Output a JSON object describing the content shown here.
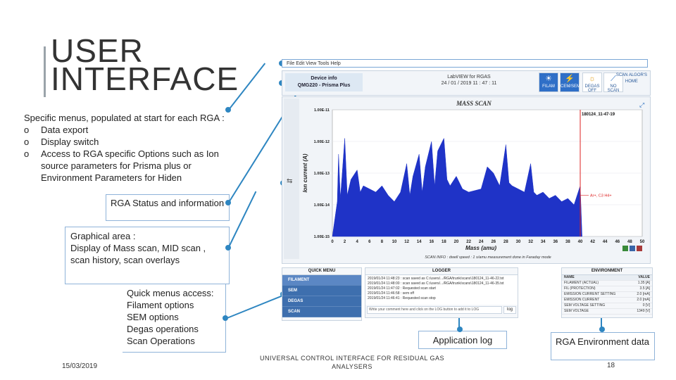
{
  "title": {
    "line1": "USER",
    "line2": "INTERFACE"
  },
  "callouts": {
    "menus": {
      "intro": "Specific menus, populated at start for each RGA :",
      "items": [
        {
          "bullet": "o",
          "text": "Data export"
        },
        {
          "bullet": "o",
          "text": "Display switch"
        },
        {
          "bullet": "o",
          "text": "Access to RGA specific Options such as Ion source parameters for Prisma plus or Environment Parameters for Hiden"
        }
      ]
    },
    "status": "RGA Status and information",
    "graphical": {
      "heading": "Graphical area :",
      "body": "Display of Mass scan, MID scan , scan history, scan overlays"
    },
    "quick": {
      "lines": [
        "Quick menus access:",
        "Filament options",
        "SEM options",
        "Degas operations",
        "Scan Operations"
      ]
    },
    "log": "Application log",
    "env": "RGA Environment data"
  },
  "app": {
    "menubar": "File   Edit   View   Tools   Help",
    "device_info": {
      "line1": "Device info",
      "line2": "QMG220 - Prisma Plus"
    },
    "labview": {
      "line1": "LabVIEW for RGAS",
      "line2": "24 / 01 / 2019    11 : 47 : 11"
    },
    "toolbar_buttons": [
      {
        "label": "FILAM",
        "icon": "☀",
        "active": true
      },
      {
        "label": "CEM/SEM",
        "icon": "⚡",
        "active": true
      },
      {
        "label": "DEGAS OFF",
        "icon": "☼",
        "active": false
      },
      {
        "label": "NO SCAN",
        "icon": "⟋",
        "active": false
      }
    ],
    "scan_algo": {
      "line1": "SCAN ALGOR'S",
      "line2": "HOME"
    },
    "chart_title": "MASS SCAN",
    "scan_info": "SCAN INFO : dwell speed : 1 s/amu measurement done in Faraday mode",
    "quick_menu": {
      "title": "QUICK MENU",
      "items": [
        "FILAMENT",
        "SEM",
        "DEGAS",
        "SCAN"
      ]
    },
    "logger": {
      "title": "LOGGER",
      "lines": [
        "2019/01/24 11:48:23 : scan saved as C:/users/.../RGA/trunk/scans\\180124_11-46-22.txt",
        "2019/01/24 11:48:00 : scan saved as C:/users/.../RGA/trunk/scans\\180124_11-46-35.txt",
        "2019/01/24 11:47:02 : Requested scan start",
        "2019/01/24 11:46:58 : sem off",
        "2019/01/24 11:46:41 : Requested scan stop"
      ],
      "comment_placeholder": "Write your comment here and click on the LOG button to add it to LOG",
      "log_button": "log"
    },
    "environment": {
      "title": "ENVIRONMENT",
      "col_name": "NAME",
      "col_value": "VALUE",
      "rows": [
        {
          "name": "FILAMENT (ACTUAL)",
          "value": "1.35 [A]"
        },
        {
          "name": "FIL (PROTECTION)",
          "value": "3.5 [A]"
        },
        {
          "name": "EMISSION CURRENT SETTING",
          "value": "2.0 [mA]"
        },
        {
          "name": "EMISSION CURRENT",
          "value": "2.0 [mA]"
        },
        {
          "name": "SEM VOLTAGE SETTING",
          "value": "0 [V]"
        },
        {
          "name": "SEM VOLTAGE",
          "value": "1349 [V]"
        }
      ]
    }
  },
  "chart_data": {
    "type": "area",
    "title": "MASS SCAN",
    "xlabel": "Mass (amu)",
    "ylabel": "Ion current (A)",
    "y_scale": "log",
    "xlim": [
      0,
      50
    ],
    "ylim_exp": [
      -15,
      -11
    ],
    "x_ticks": [
      "0",
      "2",
      "4",
      "6",
      "8",
      "10",
      "12",
      "14",
      "16",
      "18",
      "20",
      "22",
      "24",
      "26",
      "28",
      "30",
      "32",
      "34",
      "36",
      "38",
      "40",
      "42",
      "44",
      "46",
      "48",
      "50"
    ],
    "y_ticks": [
      "1.00E-11",
      "1.00E-12",
      "1.00E-13",
      "1.00E-14",
      "1.00E-15"
    ],
    "marker_label": "180124_11-47-19",
    "marker_x": 40,
    "annotation": "Ar+, C3 H4+",
    "fill_color": "#1f33c7",
    "spectrum_log": [
      [
        0,
        -15.0
      ],
      [
        0.8,
        -13.9
      ],
      [
        1.0,
        -12.4
      ],
      [
        1.3,
        -13.8
      ],
      [
        2.0,
        -11.9
      ],
      [
        2.4,
        -13.7
      ],
      [
        3.0,
        -13.2
      ],
      [
        4.0,
        -12.9
      ],
      [
        4.5,
        -13.6
      ],
      [
        5.0,
        -13.4
      ],
      [
        6.0,
        -13.5
      ],
      [
        7.0,
        -13.6
      ],
      [
        8.0,
        -13.4
      ],
      [
        9.0,
        -13.7
      ],
      [
        10.0,
        -13.9
      ],
      [
        11.0,
        -13.6
      ],
      [
        12.0,
        -12.7
      ],
      [
        12.5,
        -13.7
      ],
      [
        13.0,
        -13.1
      ],
      [
        14.0,
        -12.4
      ],
      [
        14.5,
        -13.6
      ],
      [
        15.0,
        -12.8
      ],
      [
        16.0,
        -12.0
      ],
      [
        16.5,
        -13.4
      ],
      [
        17.0,
        -12.3
      ],
      [
        18.0,
        -11.9
      ],
      [
        18.5,
        -13.2
      ],
      [
        19.0,
        -13.4
      ],
      [
        20.0,
        -13.1
      ],
      [
        21.0,
        -13.5
      ],
      [
        22.0,
        -13.6
      ],
      [
        24.0,
        -13.5
      ],
      [
        25.0,
        -12.8
      ],
      [
        26.0,
        -13.0
      ],
      [
        27.0,
        -13.4
      ],
      [
        28.0,
        -12.1
      ],
      [
        28.5,
        -13.3
      ],
      [
        29.0,
        -13.4
      ],
      [
        30.0,
        -13.5
      ],
      [
        31.0,
        -13.6
      ],
      [
        32.0,
        -12.7
      ],
      [
        32.5,
        -13.6
      ],
      [
        33.0,
        -13.7
      ],
      [
        34.0,
        -13.6
      ],
      [
        35.0,
        -13.8
      ],
      [
        36.0,
        -13.7
      ],
      [
        37.0,
        -13.9
      ],
      [
        38.0,
        -13.8
      ],
      [
        39.0,
        -14.0
      ],
      [
        40.0,
        -13.4
      ],
      [
        40.3,
        -15.0
      ]
    ]
  },
  "footer": {
    "date": "15/03/2019",
    "title": "UNIVERSAL CONTROL INTERFACE FOR RESIDUAL GAS ANALYSERS",
    "page": "18"
  }
}
